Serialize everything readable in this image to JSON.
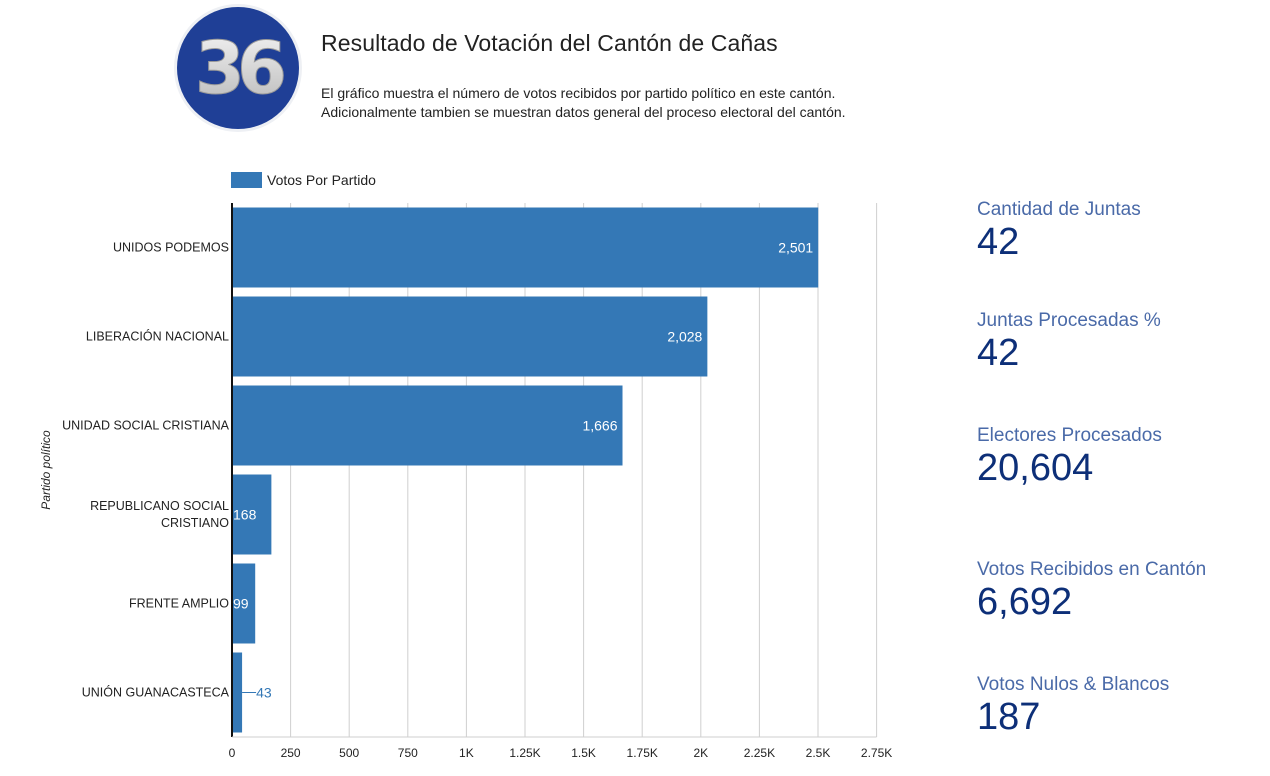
{
  "header": {
    "logo_text": "36",
    "title": "Resultado de Votación del Cantón de Cañas",
    "description_line1": "El gráfico muestra el número de votos recibidos por partido político en este cantón.",
    "description_line2": "Adicionalmente tambien se muestran datos general del proceso electoral del cantón."
  },
  "colors": {
    "bar": "#3478b6",
    "kpi_label": "#4a6aa8",
    "kpi_value": "#0d2f78",
    "logo_blue": "#1f3f96"
  },
  "chart_data": {
    "type": "bar",
    "orientation": "horizontal",
    "ylabel": "Partido político",
    "categories": [
      "UNIDOS PODEMOS",
      "LIBERACIÓN NACIONAL",
      "UNIDAD SOCIAL CRISTIANA",
      "REPUBLICANO SOCIAL CRISTIANO",
      "FRENTE AMPLIO",
      "UNIÓN GUANACASTECA"
    ],
    "category_lines": [
      [
        "UNIDOS PODEMOS"
      ],
      [
        "LIBERACIÓN NACIONAL"
      ],
      [
        "UNIDAD SOCIAL CRISTIANA"
      ],
      [
        "REPUBLICANO SOCIAL",
        "CRISTIANO"
      ],
      [
        "FRENTE AMPLIO"
      ],
      [
        "UNIÓN GUANACASTECA"
      ]
    ],
    "series": [
      {
        "name": "Votos Por Partido",
        "values": [
          2501,
          2028,
          1666,
          168,
          99,
          43
        ],
        "labels": [
          "2,501",
          "2,028",
          "1,666",
          "168",
          "99",
          "43"
        ]
      }
    ],
    "xlim": [
      0,
      2750
    ],
    "xticks": [
      0,
      250,
      500,
      750,
      1000,
      1250,
      1500,
      1750,
      2000,
      2250,
      2500,
      2750
    ],
    "xtick_labels": [
      "0",
      "250",
      "500",
      "750",
      "1K",
      "1.25K",
      "1.5K",
      "1.75K",
      "2K",
      "2.25K",
      "2.5K",
      "2.75K"
    ],
    "grid": true,
    "legend": "top"
  },
  "kpis": [
    {
      "label": "Cantidad de Juntas",
      "value": "42"
    },
    {
      "label": "Juntas Procesadas %",
      "value": "42"
    },
    {
      "label": "Electores Procesados",
      "value": "20,604"
    },
    {
      "label": "Votos Recibidos en Cantón",
      "value": "6,692"
    },
    {
      "label": "Votos Nulos & Blancos",
      "value": "187"
    }
  ]
}
